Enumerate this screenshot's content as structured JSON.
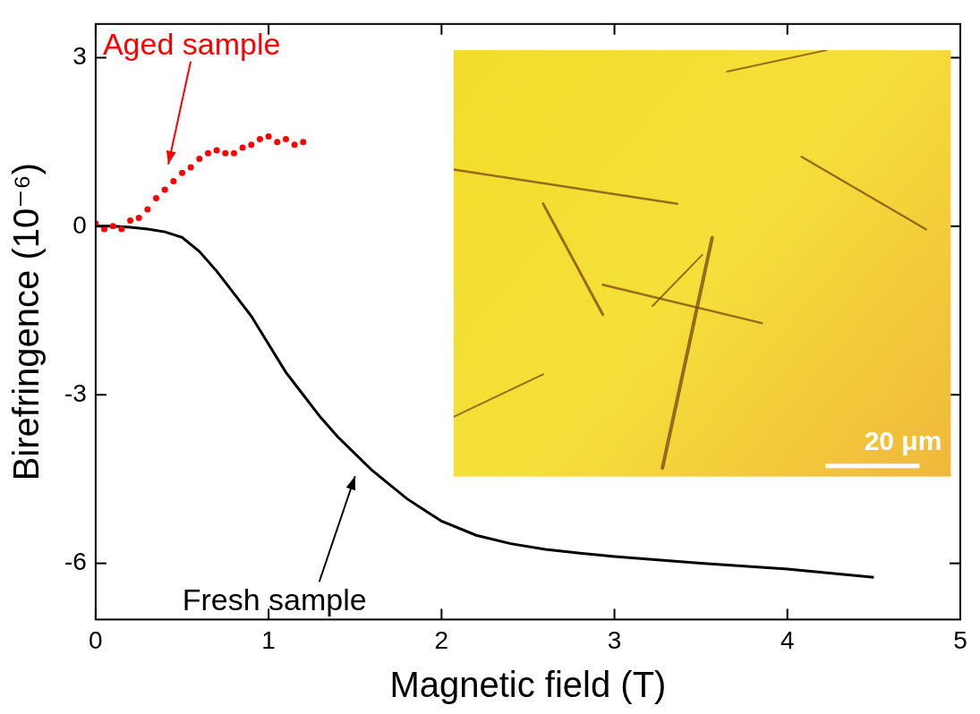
{
  "chart_data": {
    "type": "line",
    "x_label": "Magnetic field (T)",
    "y_label": "Birefringence (10⁻⁶)",
    "xlim": [
      0,
      5
    ],
    "xticks": [
      0,
      1,
      2,
      3,
      4,
      5
    ],
    "ylim": [
      -7,
      3.6
    ],
    "yticks": [
      -6,
      -3,
      0,
      3
    ],
    "grid": false,
    "series": [
      {
        "name": "Aged sample",
        "color": "#ff0000",
        "marker": "circle",
        "line_style": "none",
        "x": [
          0,
          0.05,
          0.1,
          0.15,
          0.2,
          0.25,
          0.3,
          0.35,
          0.4,
          0.45,
          0.5,
          0.55,
          0.6,
          0.65,
          0.7,
          0.75,
          0.8,
          0.85,
          0.9,
          0.95,
          1.0,
          1.05,
          1.1,
          1.15,
          1.2
        ],
        "values": [
          0.05,
          -0.05,
          0.0,
          -0.05,
          0.1,
          0.15,
          0.3,
          0.5,
          0.65,
          0.8,
          0.95,
          1.05,
          1.2,
          1.3,
          1.35,
          1.3,
          1.3,
          1.4,
          1.45,
          1.55,
          1.6,
          1.5,
          1.55,
          1.45,
          1.5
        ]
      },
      {
        "name": "Fresh sample",
        "color": "#000000",
        "marker": "none",
        "line_style": "solid",
        "x": [
          0,
          0.1,
          0.2,
          0.3,
          0.4,
          0.5,
          0.6,
          0.7,
          0.8,
          0.9,
          1.0,
          1.1,
          1.2,
          1.3,
          1.4,
          1.5,
          1.6,
          1.7,
          1.8,
          1.9,
          2.0,
          2.2,
          2.4,
          2.6,
          2.8,
          3.0,
          3.5,
          4.0,
          4.5
        ],
        "values": [
          0,
          0,
          -0.02,
          -0.05,
          -0.1,
          -0.2,
          -0.45,
          -0.8,
          -1.2,
          -1.6,
          -2.1,
          -2.6,
          -3.0,
          -3.4,
          -3.75,
          -4.05,
          -4.35,
          -4.6,
          -4.85,
          -5.05,
          -5.25,
          -5.5,
          -5.65,
          -5.75,
          -5.82,
          -5.88,
          -6.0,
          -6.1,
          -6.25
        ]
      }
    ],
    "annotations": [
      {
        "text": "Aged sample",
        "series": "Aged sample",
        "x": 0.42,
        "y": 1.1
      },
      {
        "text": "Fresh sample",
        "series": "Fresh sample",
        "x": 1.5,
        "y": -4.45
      }
    ],
    "inset": {
      "scale_label": "20 μm"
    }
  }
}
